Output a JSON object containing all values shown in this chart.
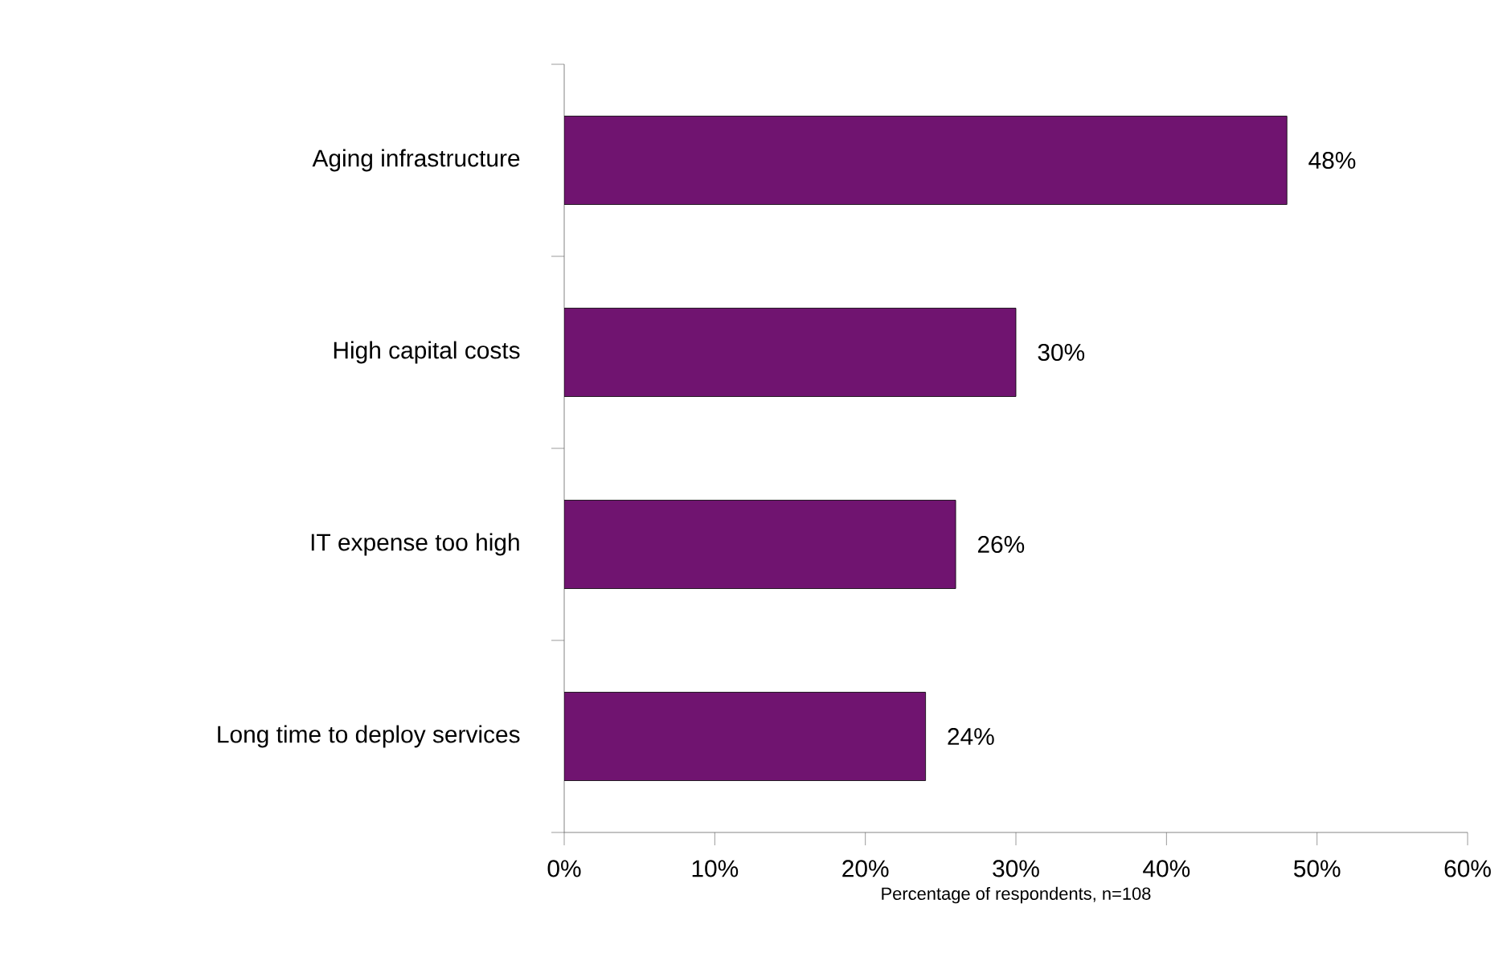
{
  "chart_data": {
    "type": "bar",
    "orientation": "horizontal",
    "categories": [
      "Aging infrastructure",
      "High capital costs",
      "IT expense too high",
      "Long time to deploy services"
    ],
    "values": [
      48,
      30,
      26,
      24
    ],
    "color": "#701470",
    "value_labels": [
      "48%",
      "30%",
      "26%",
      "24%"
    ],
    "xlim": [
      0,
      60
    ],
    "xticks": [
      {
        "value": 0,
        "label": "0%"
      },
      {
        "value": 10,
        "label": "10%"
      },
      {
        "value": 20,
        "label": "20%"
      },
      {
        "value": 30,
        "label": "30%"
      },
      {
        "value": 40,
        "label": "40%"
      },
      {
        "value": 50,
        "label": "50%"
      },
      {
        "value": 60,
        "label": "60%"
      }
    ],
    "xlabel": "Percentage of respondents, n=108",
    "grid": false
  }
}
